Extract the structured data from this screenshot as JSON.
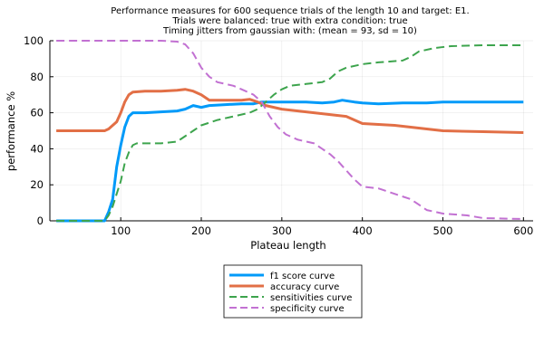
{
  "chart_data": {
    "type": "line",
    "title_lines": [
      "Performance measures for 600 sequence trials of the length 10 and target: E1.",
      "Trials were balanced: true with extra condition: true",
      "Timing jitters from gaussian with: (mean = 93, sd = 10)"
    ],
    "xlabel": "Plateau length",
    "ylabel": "performance %",
    "xlim": [
      12,
      612
    ],
    "ylim": [
      0,
      100
    ],
    "xticks": [
      100,
      200,
      300,
      400,
      500,
      600
    ],
    "yticks": [
      0,
      20,
      40,
      60,
      80,
      100
    ],
    "grid": true,
    "legend_position": "bottom",
    "series": [
      {
        "name": "f1 score curve",
        "color": "#009af9",
        "dash": "solid",
        "points": [
          [
            20,
            0
          ],
          [
            80,
            0
          ],
          [
            85,
            5
          ],
          [
            90,
            12
          ],
          [
            95,
            30
          ],
          [
            100,
            42
          ],
          [
            105,
            52
          ],
          [
            110,
            58
          ],
          [
            115,
            60
          ],
          [
            130,
            60
          ],
          [
            150,
            60.5
          ],
          [
            170,
            61
          ],
          [
            180,
            62
          ],
          [
            190,
            64
          ],
          [
            200,
            63
          ],
          [
            210,
            64
          ],
          [
            230,
            64.5
          ],
          [
            250,
            65
          ],
          [
            265,
            65
          ],
          [
            275,
            66
          ],
          [
            290,
            66
          ],
          [
            310,
            66
          ],
          [
            330,
            66
          ],
          [
            350,
            65.5
          ],
          [
            365,
            66
          ],
          [
            375,
            67
          ],
          [
            390,
            66
          ],
          [
            400,
            65.5
          ],
          [
            420,
            65
          ],
          [
            450,
            65.5
          ],
          [
            480,
            65.5
          ],
          [
            500,
            66
          ],
          [
            550,
            66
          ],
          [
            600,
            66
          ]
        ]
      },
      {
        "name": "accuracy curve",
        "color": "#e26f46",
        "dash": "solid",
        "points": [
          [
            20,
            50
          ],
          [
            80,
            50
          ],
          [
            85,
            51
          ],
          [
            90,
            53
          ],
          [
            95,
            55
          ],
          [
            100,
            60
          ],
          [
            105,
            66
          ],
          [
            110,
            70
          ],
          [
            115,
            71.5
          ],
          [
            130,
            72
          ],
          [
            150,
            72
          ],
          [
            170,
            72.5
          ],
          [
            180,
            73
          ],
          [
            190,
            72
          ],
          [
            200,
            70
          ],
          [
            210,
            67
          ],
          [
            230,
            67
          ],
          [
            250,
            67
          ],
          [
            260,
            67.5
          ],
          [
            270,
            66
          ],
          [
            280,
            64
          ],
          [
            290,
            63
          ],
          [
            300,
            62
          ],
          [
            320,
            61
          ],
          [
            340,
            60
          ],
          [
            360,
            59
          ],
          [
            380,
            58
          ],
          [
            400,
            54
          ],
          [
            420,
            53.5
          ],
          [
            440,
            53
          ],
          [
            460,
            52
          ],
          [
            480,
            51
          ],
          [
            500,
            50
          ],
          [
            550,
            49.5
          ],
          [
            600,
            49
          ]
        ]
      },
      {
        "name": "sensitivities curve",
        "color": "#3da44d",
        "dash": "dash",
        "points": [
          [
            20,
            0
          ],
          [
            80,
            0
          ],
          [
            85,
            3
          ],
          [
            90,
            8
          ],
          [
            95,
            15
          ],
          [
            100,
            22
          ],
          [
            105,
            32
          ],
          [
            110,
            38
          ],
          [
            115,
            42
          ],
          [
            120,
            43
          ],
          [
            150,
            43
          ],
          [
            170,
            44
          ],
          [
            180,
            47
          ],
          [
            190,
            50
          ],
          [
            200,
            53
          ],
          [
            220,
            56
          ],
          [
            240,
            58
          ],
          [
            260,
            60
          ],
          [
            270,
            62
          ],
          [
            280,
            66
          ],
          [
            290,
            70
          ],
          [
            300,
            73
          ],
          [
            310,
            75
          ],
          [
            330,
            76
          ],
          [
            350,
            77
          ],
          [
            360,
            79
          ],
          [
            370,
            83
          ],
          [
            380,
            85
          ],
          [
            400,
            87
          ],
          [
            420,
            88
          ],
          [
            450,
            89
          ],
          [
            460,
            91
          ],
          [
            470,
            94
          ],
          [
            490,
            96
          ],
          [
            510,
            97
          ],
          [
            550,
            97.5
          ],
          [
            600,
            97.5
          ]
        ]
      },
      {
        "name": "specificity curve",
        "color": "#c271d2",
        "dash": "dash",
        "points": [
          [
            20,
            100
          ],
          [
            100,
            100
          ],
          [
            150,
            100
          ],
          [
            170,
            99.5
          ],
          [
            180,
            98
          ],
          [
            190,
            93
          ],
          [
            200,
            85
          ],
          [
            210,
            80
          ],
          [
            220,
            77
          ],
          [
            240,
            75
          ],
          [
            255,
            72
          ],
          [
            265,
            70
          ],
          [
            275,
            66
          ],
          [
            285,
            58
          ],
          [
            295,
            52
          ],
          [
            305,
            48
          ],
          [
            320,
            45
          ],
          [
            340,
            43
          ],
          [
            350,
            40
          ],
          [
            360,
            37
          ],
          [
            370,
            33
          ],
          [
            380,
            28
          ],
          [
            390,
            23
          ],
          [
            400,
            19
          ],
          [
            420,
            18
          ],
          [
            440,
            15
          ],
          [
            460,
            12
          ],
          [
            470,
            9
          ],
          [
            480,
            6
          ],
          [
            500,
            4
          ],
          [
            530,
            3
          ],
          [
            550,
            1.5
          ],
          [
            600,
            1
          ]
        ]
      }
    ]
  }
}
